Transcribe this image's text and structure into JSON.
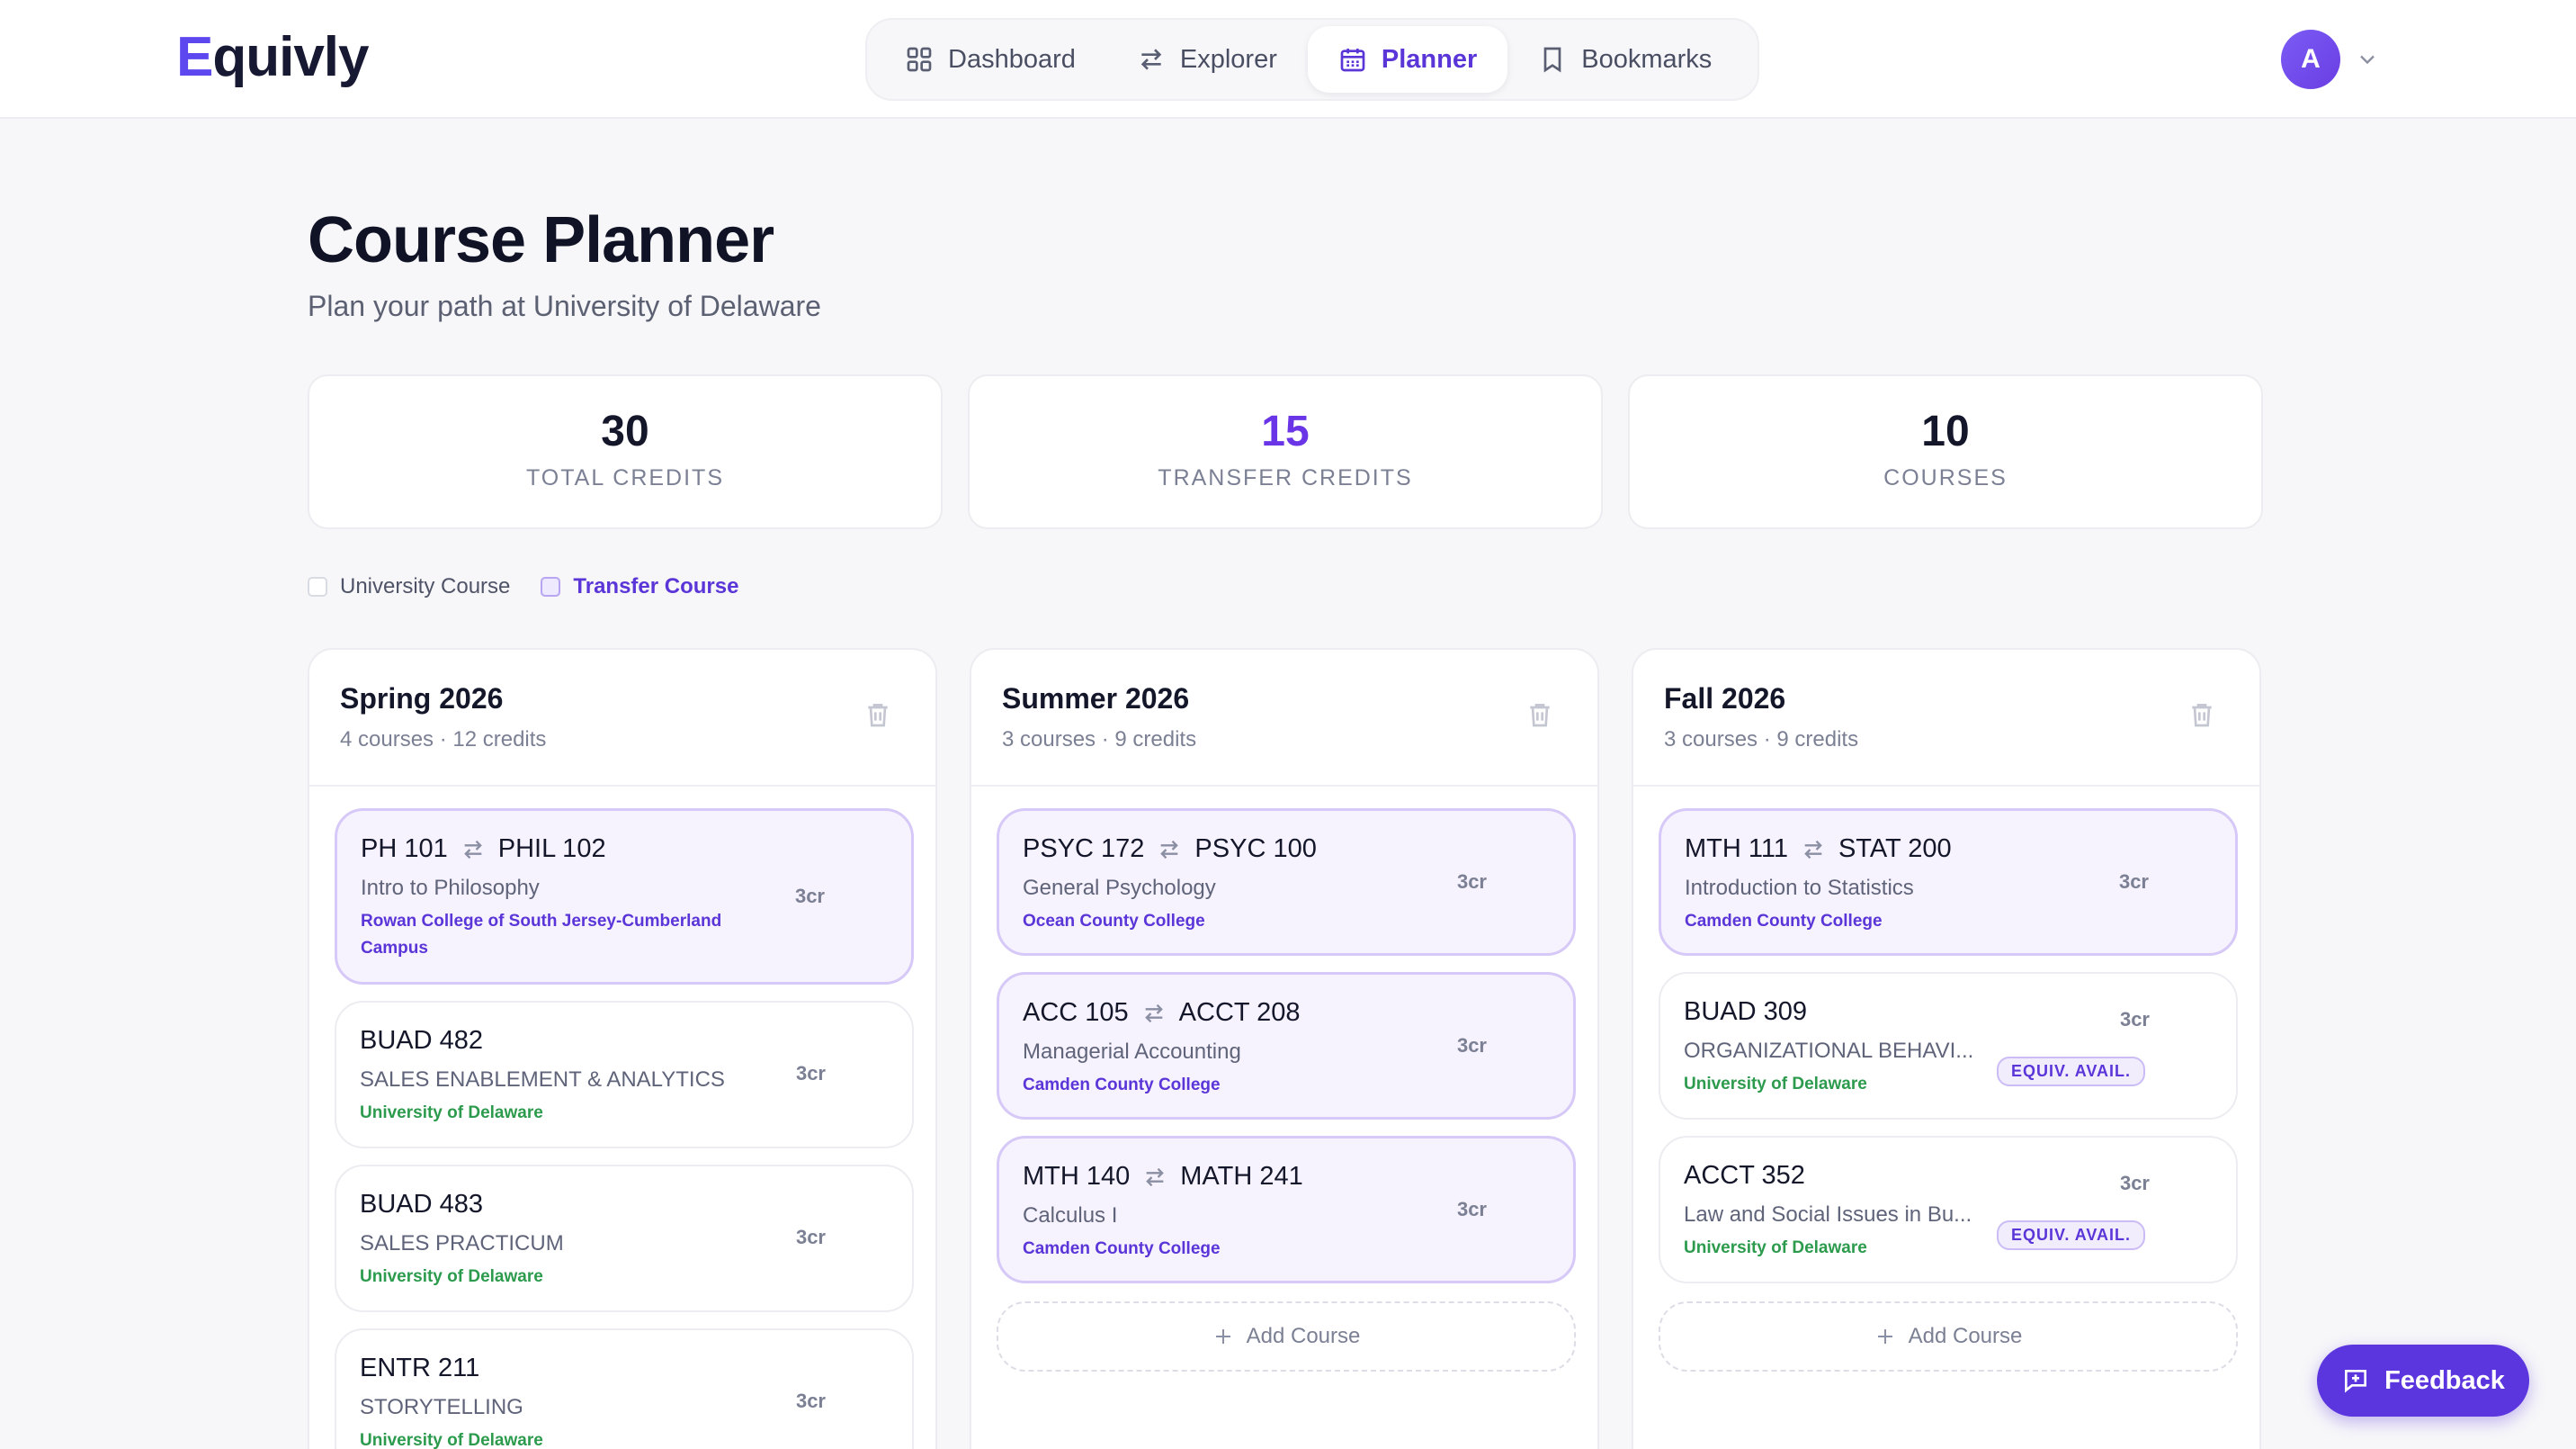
{
  "brand": {
    "logo_first": "E",
    "logo_rest": "quivly"
  },
  "nav": {
    "tabs": [
      {
        "label": "Dashboard",
        "icon": "grid-icon",
        "active": false
      },
      {
        "label": "Explorer",
        "icon": "swap-icon",
        "active": false
      },
      {
        "label": "Planner",
        "icon": "calendar-icon",
        "active": true
      },
      {
        "label": "Bookmarks",
        "icon": "bookmark-icon",
        "active": false
      }
    ]
  },
  "user": {
    "avatar_initial": "A"
  },
  "page": {
    "title": "Course Planner",
    "subtitle": "Plan your path at University of Delaware"
  },
  "stats": [
    {
      "value": "30",
      "label": "TOTAL CREDITS"
    },
    {
      "value": "15",
      "label": "TRANSFER CREDITS"
    },
    {
      "value": "10",
      "label": "COURSES"
    }
  ],
  "legend": {
    "university": "University Course",
    "transfer": "Transfer Course"
  },
  "colors": {
    "accent": "#5b35de",
    "transfer_bg": "#f6f2fe",
    "university_school": "#2c9b4d"
  },
  "terms": [
    {
      "name": "Spring 2026",
      "meta": "4 courses · 12 credits",
      "courses": [
        {
          "transfer": true,
          "from": "PH 101",
          "to": "PHIL 102",
          "title": "Intro to Philosophy",
          "school_line1": "Rowan College of South Jersey-Cumberland",
          "school_line2": "Campus",
          "credits": "3cr"
        },
        {
          "transfer": false,
          "code": "BUAD 482",
          "title": "SALES ENABLEMENT & ANALYTICS",
          "school": "University of Delaware",
          "credits": "3cr"
        },
        {
          "transfer": false,
          "code": "BUAD 483",
          "title": "SALES PRACTICUM",
          "school": "University of Delaware",
          "credits": "3cr"
        },
        {
          "transfer": false,
          "code": "ENTR 211",
          "title": "STORYTELLING",
          "school": "University of Delaware",
          "credits": "3cr"
        }
      ]
    },
    {
      "name": "Summer 2026",
      "meta": "3 courses · 9 credits",
      "courses": [
        {
          "transfer": true,
          "from": "PSYC 172",
          "to": "PSYC 100",
          "title": "General Psychology",
          "school": "Ocean County College",
          "credits": "3cr"
        },
        {
          "transfer": true,
          "from": "ACC 105",
          "to": "ACCT 208",
          "title": "Managerial Accounting",
          "school": "Camden County College",
          "credits": "3cr"
        },
        {
          "transfer": true,
          "from": "MTH 140",
          "to": "MATH 241",
          "title": "Calculus I",
          "school": "Camden County College",
          "credits": "3cr"
        }
      ],
      "add_label": "Add Course"
    },
    {
      "name": "Fall 2026",
      "meta": "3 courses · 9 credits",
      "courses": [
        {
          "transfer": true,
          "from": "MTH 111",
          "to": "STAT 200",
          "title": "Introduction to Statistics",
          "school": "Camden County College",
          "credits": "3cr"
        },
        {
          "transfer": false,
          "code": "BUAD 309",
          "title": "ORGANIZATIONAL BEHAVI...",
          "school": "University of Delaware",
          "credits": "3cr",
          "badge": "EQUIV. AVAIL."
        },
        {
          "transfer": false,
          "code": "ACCT 352",
          "title": "Law and Social Issues in Bu...",
          "school": "University of Delaware",
          "credits": "3cr",
          "badge": "EQUIV. AVAIL."
        }
      ],
      "add_label": "Add Course"
    }
  ],
  "feedback": {
    "label": "Feedback"
  }
}
